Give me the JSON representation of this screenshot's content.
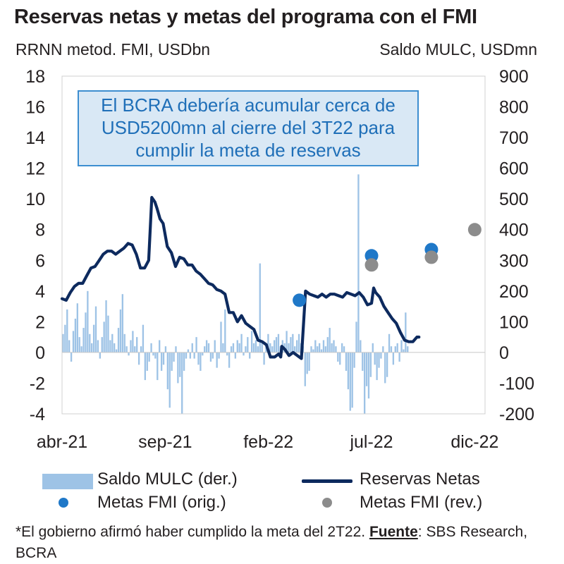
{
  "header": {
    "title": "Reservas netas y metas del programa con el FMI",
    "left_axis_caption": "RRNN metod. FMI, USDbn",
    "right_axis_caption": "Saldo MULC, USDmn"
  },
  "annotation": {
    "lines": [
      "El BCRA debería acumular cerca de",
      "USD5200mn al cierre del 3T22 para",
      "cumplir la meta de reservas"
    ]
  },
  "legend": {
    "bar": "Saldo MULC (der.)",
    "line": "Reservas Netas",
    "orig": "Metas FMI (orig.)",
    "rev": "Metas FMI (rev.)"
  },
  "footnote": {
    "prefix": "*El gobierno afirmó haber cumplido la meta del 2T22. ",
    "source_label": "Fuente",
    "source_text": ": SBS Research, BCRA"
  },
  "colors": {
    "bars": "#9ec3e6",
    "line": "#0d2a5e",
    "orig": "#1f78c8",
    "rev": "#8c8c8c",
    "annot_border": "#3d8ed0"
  },
  "chart_data": {
    "type": "bar+line+scatter",
    "title": "Reservas netas y metas del programa con el FMI",
    "x_axis": {
      "unit": "months since abr-21",
      "range": [
        0,
        20.5
      ],
      "ticks": [
        {
          "pos": 0,
          "label": "abr-21"
        },
        {
          "pos": 5,
          "label": "sep-21"
        },
        {
          "pos": 10,
          "label": "feb-22"
        },
        {
          "pos": 15,
          "label": "jul-22"
        },
        {
          "pos": 20,
          "label": "dic-22"
        }
      ]
    },
    "y_left": {
      "label": "RRNN metod. FMI, USDbn",
      "range": [
        -4,
        18
      ],
      "ticks": [
        -4,
        -2,
        0,
        2,
        4,
        6,
        8,
        10,
        12,
        14,
        16,
        18
      ]
    },
    "y_right": {
      "label": "Saldo MULC, USDmn",
      "range": [
        -200,
        900
      ],
      "ticks": [
        -200,
        -100,
        0,
        100,
        200,
        300,
        400,
        500,
        600,
        700,
        800,
        900
      ]
    },
    "series": [
      {
        "name": "Reservas Netas",
        "axis": "left",
        "type": "line",
        "x": [
          0,
          0.2,
          0.4,
          0.6,
          0.8,
          1.0,
          1.2,
          1.4,
          1.6,
          1.8,
          2.0,
          2.2,
          2.4,
          2.6,
          2.8,
          3.0,
          3.2,
          3.4,
          3.6,
          3.8,
          4.0,
          4.2,
          4.35,
          4.5,
          4.6,
          4.75,
          4.9,
          5.1,
          5.3,
          5.5,
          5.7,
          5.9,
          6.1,
          6.3,
          6.5,
          6.7,
          6.9,
          7.1,
          7.3,
          7.5,
          7.7,
          7.9,
          8.1,
          8.3,
          8.5,
          8.7,
          8.9,
          9.1,
          9.3,
          9.5,
          9.7,
          9.9,
          10.1,
          10.3,
          10.5,
          10.6,
          10.65,
          10.8,
          11.0,
          11.2,
          11.4,
          11.6,
          11.8,
          12.0,
          12.2,
          12.4,
          12.6,
          12.8,
          13.0,
          13.2,
          13.4,
          13.6,
          13.8,
          14.0,
          14.2,
          14.4,
          14.6,
          14.8,
          15.0,
          15.1,
          15.2,
          15.4,
          15.6,
          15.8,
          16.0,
          16.2,
          16.4,
          16.6,
          16.8,
          17.0,
          17.2,
          17.3
        ],
        "values": [
          3.5,
          3.4,
          3.9,
          4.3,
          4.5,
          4.5,
          5.0,
          5.5,
          5.6,
          6.0,
          6.4,
          6.6,
          6.6,
          6.4,
          6.6,
          6.8,
          7.1,
          7.0,
          6.4,
          5.5,
          5.5,
          6.0,
          10.1,
          9.8,
          9.4,
          8.7,
          8.4,
          6.9,
          6.5,
          5.6,
          6.2,
          6.1,
          5.7,
          5.7,
          5.3,
          5.1,
          4.8,
          4.5,
          4.4,
          4.1,
          4.0,
          3.8,
          2.6,
          2.6,
          2.0,
          2.4,
          1.9,
          1.7,
          1.5,
          0.8,
          0.7,
          0.5,
          -0.3,
          -0.3,
          -0.1,
          -0.3,
          0.4,
          0.2,
          -0.2,
          0.0,
          -0.2,
          -0.4,
          4.0,
          3.8,
          3.7,
          3.6,
          3.8,
          3.6,
          3.8,
          3.8,
          3.7,
          3.6,
          3.9,
          3.8,
          3.7,
          3.9,
          3.6,
          3.1,
          3.2,
          4.2,
          3.9,
          3.6,
          3.0,
          2.6,
          2.2,
          1.9,
          1.3,
          0.8,
          0.7,
          0.7,
          1.0,
          1.0
        ]
      },
      {
        "name": "Saldo MULC (der.)",
        "axis": "right",
        "type": "bar",
        "x_range": [
          0,
          16.8
        ],
        "values": [
          60,
          90,
          140,
          40,
          -30,
          70,
          110,
          160,
          50,
          20,
          80,
          130,
          200,
          60,
          30,
          90,
          150,
          40,
          -20,
          50,
          100,
          170,
          120,
          40,
          60,
          30,
          10,
          80,
          140,
          190,
          60,
          20,
          -10,
          40,
          70,
          20,
          50,
          -40,
          20,
          90,
          -90,
          -60,
          -30,
          30,
          -10,
          -20,
          -90,
          40,
          -60,
          -40,
          20,
          -120,
          -180,
          -60,
          -30,
          20,
          -100,
          -80,
          -200,
          -60,
          -20,
          10,
          -20,
          30,
          -20,
          50,
          -40,
          -60,
          -10,
          20,
          40,
          30,
          -30,
          -20,
          40,
          -50,
          -20,
          100,
          30,
          140,
          -10,
          -50,
          20,
          30,
          -20,
          40,
          30,
          60,
          -10,
          20,
          50,
          -20,
          70,
          30,
          40,
          20,
          290,
          30,
          -40,
          20,
          60,
          30,
          20,
          40,
          50,
          60,
          20,
          40,
          30,
          70,
          30,
          50,
          60,
          20,
          40,
          60,
          30,
          20,
          -110,
          -70,
          -60,
          20,
          10,
          40,
          20,
          30,
          10,
          40,
          20,
          50,
          80,
          30,
          40,
          20,
          -30,
          -40,
          30,
          20,
          -60,
          -120,
          -190,
          -180,
          -50,
          100,
          580,
          40,
          -60,
          -200,
          -110,
          -150,
          -80,
          30,
          -40,
          -90,
          -50,
          -20,
          20,
          -100,
          -80,
          60,
          20,
          -40,
          20,
          30,
          -30,
          40,
          10,
          130,
          20
        ]
      },
      {
        "name": "Metas FMI (orig.)",
        "axis": "left",
        "type": "scatter",
        "x": [
          11.5,
          15.0,
          17.9
        ],
        "values": [
          3.4,
          6.3,
          6.7
        ]
      },
      {
        "name": "Metas FMI (rev.)",
        "axis": "left",
        "type": "scatter",
        "x": [
          15.0,
          17.9,
          20.0
        ],
        "values": [
          5.7,
          6.2,
          8.0
        ]
      }
    ],
    "annotation": "El BCRA debería acumular cerca de USD5200mn al cierre del 3T22 para cumplir la meta de reservas",
    "grid": false,
    "legend_position": "bottom"
  }
}
